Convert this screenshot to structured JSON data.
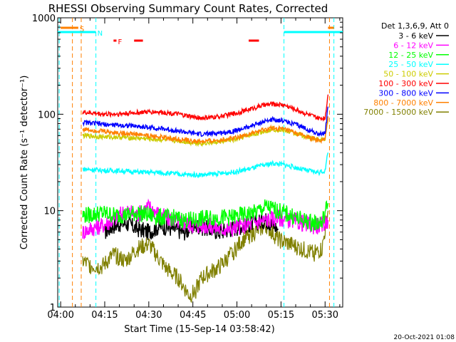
{
  "chart_data": {
    "type": "line",
    "title": "RHESSI Observing Summary Count Rates, Corrected",
    "xlabel": "Start Time (15-Sep-14 03:58:42)",
    "ylabel": "Corrected Count Rate (s⁻¹ detector⁻¹)",
    "yscale": "log",
    "ylim": [
      1,
      1000
    ],
    "xlim_minutes": [
      239,
      336
    ],
    "x_ticks": [
      {
        "t": 240,
        "label": "04:00"
      },
      {
        "t": 255,
        "label": "04:15"
      },
      {
        "t": 270,
        "label": "04:30"
      },
      {
        "t": 285,
        "label": "04:45"
      },
      {
        "t": 300,
        "label": "05:00"
      },
      {
        "t": 315,
        "label": "05:15"
      },
      {
        "t": 330,
        "label": "05:30"
      }
    ],
    "y_ticks": [
      {
        "v": 1,
        "label": "1"
      },
      {
        "v": 10,
        "label": "10"
      },
      {
        "v": 100,
        "label": "100"
      },
      {
        "v": 1000,
        "label": "1000"
      }
    ],
    "legend_header": "Det 1,3,6,9, Att 0",
    "legend_position": "right",
    "series": [
      {
        "name": "3 - 6 keV",
        "color": "#000000",
        "x": [
          255,
          258,
          262,
          266,
          270,
          274,
          278,
          282,
          286,
          290,
          294,
          298,
          302,
          306,
          310,
          314
        ],
        "values": [
          6,
          7,
          7.5,
          6.5,
          6,
          7,
          6.5,
          6,
          7,
          6.5,
          6,
          6.5,
          7,
          7.5,
          8,
          6.5
        ]
      },
      {
        "name": "6 - 12 keV",
        "color": "#ff00ff",
        "x": [
          247.5,
          250,
          254,
          258,
          262,
          266,
          270,
          274,
          278,
          282,
          286,
          290,
          294,
          298,
          302,
          306,
          310,
          314,
          318,
          322,
          326,
          329,
          331
        ],
        "values": [
          6,
          6.5,
          7,
          8,
          10,
          9,
          11,
          9,
          8,
          7.5,
          7,
          7,
          6.5,
          6.5,
          7,
          7.5,
          8,
          8.5,
          8,
          7.5,
          7,
          7,
          8
        ]
      },
      {
        "name": "12 - 25 keV",
        "color": "#00ff00",
        "x": [
          247.5,
          250,
          254,
          258,
          262,
          266,
          270,
          274,
          278,
          282,
          286,
          290,
          294,
          298,
          302,
          306,
          310,
          314,
          318,
          322,
          326,
          329,
          331
        ],
        "values": [
          9,
          9,
          9.5,
          9,
          9,
          9.5,
          9,
          8.5,
          8.5,
          8,
          8,
          8.5,
          8.5,
          8.5,
          9,
          9.5,
          11,
          10,
          9,
          8,
          7.5,
          7.5,
          12
        ]
      },
      {
        "name": "25 - 50 keV",
        "color": "#00ffff",
        "x": [
          247.5,
          252,
          256,
          260,
          264,
          268,
          272,
          276,
          280,
          284,
          288,
          292,
          296,
          300,
          304,
          308,
          312,
          316,
          320,
          324,
          328,
          330,
          331
        ],
        "values": [
          27,
          26.5,
          26,
          26,
          25.5,
          25,
          25,
          24.5,
          24,
          23.5,
          23.5,
          24,
          24.5,
          25.5,
          27,
          29,
          31,
          30,
          28,
          26,
          25,
          26,
          40
        ]
      },
      {
        "name": "50 - 100 keV",
        "color": "#cccc00",
        "x": [
          247.5,
          252,
          256,
          260,
          264,
          268,
          272,
          276,
          280,
          284,
          288,
          292,
          296,
          300,
          304,
          308,
          312,
          316,
          320,
          324,
          328,
          330,
          331
        ],
        "values": [
          60,
          59,
          58,
          58,
          57,
          56,
          55,
          54,
          53,
          51,
          50,
          51,
          53,
          55,
          60,
          65,
          70,
          68,
          63,
          58,
          54,
          56,
          90
        ]
      },
      {
        "name": "100 - 300 keV",
        "color": "#ff0000",
        "x": [
          247.5,
          252,
          256,
          260,
          264,
          268,
          272,
          276,
          280,
          284,
          288,
          292,
          296,
          300,
          304,
          308,
          312,
          316,
          320,
          324,
          328,
          330,
          331
        ],
        "values": [
          105,
          102,
          100,
          101,
          103,
          105,
          106,
          104,
          100,
          95,
          91,
          93,
          97,
          103,
          112,
          122,
          128,
          125,
          112,
          100,
          90,
          92,
          160
        ]
      },
      {
        "name": "300 - 800 keV",
        "color": "#0000ff",
        "x": [
          247.5,
          252,
          256,
          260,
          264,
          268,
          272,
          276,
          280,
          284,
          288,
          292,
          296,
          300,
          304,
          308,
          312,
          316,
          320,
          324,
          328,
          330,
          331
        ],
        "values": [
          82,
          80,
          78,
          77,
          76,
          74,
          72,
          70,
          67,
          64,
          62,
          63,
          65,
          68,
          74,
          82,
          88,
          86,
          78,
          70,
          62,
          63,
          120
        ]
      },
      {
        "name": "800 - 7000 keV",
        "color": "#ff8000",
        "x": [
          247.5,
          252,
          256,
          260,
          264,
          268,
          272,
          276,
          280,
          284,
          288,
          292,
          296,
          300,
          304,
          308,
          312,
          316,
          320,
          324,
          328,
          330,
          331
        ],
        "values": [
          70,
          68,
          66,
          64,
          63,
          61,
          59,
          57,
          55,
          53,
          52,
          53,
          55,
          58,
          62,
          67,
          72,
          70,
          64,
          58,
          53,
          54,
          95
        ]
      },
      {
        "name": "7000 - 15000 keV",
        "color": "#808000",
        "x": [
          247.5,
          250,
          254,
          258,
          262,
          266,
          270,
          274,
          276,
          278,
          280,
          282,
          284,
          286,
          288,
          290,
          294,
          298,
          302,
          306,
          310,
          314,
          318,
          322,
          326,
          329,
          331
        ],
        "values": [
          3,
          2.7,
          2.6,
          3.5,
          3,
          4,
          4.5,
          3,
          2.5,
          2.2,
          2,
          1.6,
          1.3,
          1.5,
          2,
          2.2,
          2.6,
          3.5,
          5,
          6,
          7,
          5,
          4.5,
          4,
          3.6,
          4,
          10
        ]
      }
    ],
    "annotations": [
      {
        "label": "S",
        "color": "#ff8000",
        "x_start": 240,
        "x_end": 246
      },
      {
        "label": "N",
        "color": "#00ffff",
        "x_start": 239,
        "x_end": 252
      },
      {
        "label": "F",
        "color": "#ff0000",
        "x_start": 258,
        "x_end": 259
      },
      {
        "label": "",
        "color": "#ff0000",
        "x_start": 265,
        "x_end": 268
      },
      {
        "label": "",
        "color": "#ff0000",
        "x_start": 304,
        "x_end": 307.5
      },
      {
        "label": "",
        "color": "#00ffff",
        "x_start": 316,
        "x_end": 336
      },
      {
        "label": "",
        "color": "#ff8000",
        "x_start": 331,
        "x_end": 333
      }
    ],
    "night_markers_cyan": [
      239.5,
      252,
      316,
      333
    ],
    "saa_markers_orange": [
      244,
      247,
      331.5
    ]
  },
  "footer": {
    "date_stamp": "20-Oct-2021 01:08"
  }
}
